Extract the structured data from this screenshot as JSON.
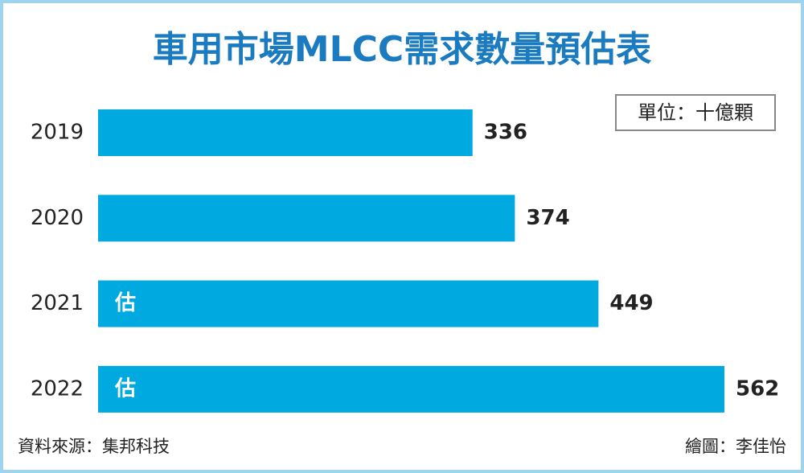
{
  "chart_data": {
    "type": "barh",
    "title": "車用市場MLCC需求數量預估表",
    "unit": "單位：十億顆",
    "categories": [
      "2019",
      "2020",
      "2021",
      "2022"
    ],
    "values": [
      336,
      374,
      449,
      562
    ],
    "bar_labels": [
      null,
      null,
      "估",
      "估"
    ],
    "color": "#00a9e0",
    "source": "資料來源：集邦科技",
    "credit": "繪圖：李佳怡"
  }
}
